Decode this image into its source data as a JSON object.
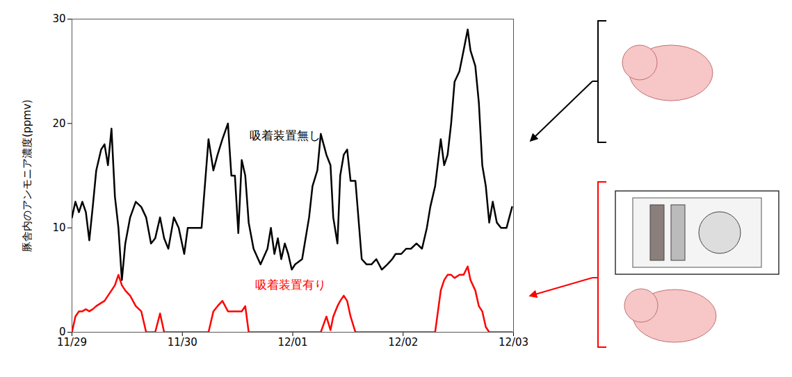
{
  "chart_data": {
    "type": "line",
    "y_label": "豚舎内のアンモニア濃度(ppmv)",
    "xlim": [
      0,
      4
    ],
    "xticks": [
      {
        "value": 0,
        "label": "11/29"
      },
      {
        "value": 1,
        "label": "11/30"
      },
      {
        "value": 2,
        "label": "12/01"
      },
      {
        "value": 3,
        "label": "12/02"
      },
      {
        "value": 4,
        "label": "12/03"
      }
    ],
    "ylim": [
      0,
      30
    ],
    "yticks": [
      0,
      10,
      20,
      30
    ],
    "grid": false,
    "x": [
      0,
      0.031,
      0.063,
      0.094,
      0.126,
      0.157,
      0.188,
      0.22,
      0.264,
      0.295,
      0.326,
      0.358,
      0.389,
      0.421,
      0.452,
      0.483,
      0.527,
      0.578,
      0.628,
      0.672,
      0.716,
      0.754,
      0.798,
      0.835,
      0.873,
      0.923,
      0.967,
      1.017,
      1.049,
      1.111,
      1.174,
      1.237,
      1.281,
      1.319,
      1.363,
      1.413,
      1.444,
      1.476,
      1.507,
      1.538,
      1.57,
      1.601,
      1.645,
      1.708,
      1.771,
      1.802,
      1.834,
      1.865,
      1.896,
      1.928,
      1.959,
      1.991,
      2.022,
      2.085,
      2.148,
      2.179,
      2.223,
      2.254,
      2.305,
      2.342,
      2.367,
      2.405,
      2.43,
      2.462,
      2.493,
      2.524,
      2.568,
      2.625,
      2.669,
      2.713,
      2.757,
      2.807,
      2.857,
      2.901,
      2.932,
      2.983,
      3.027,
      3.071,
      3.121,
      3.171,
      3.215,
      3.246,
      3.29,
      3.341,
      3.372,
      3.403,
      3.435,
      3.466,
      3.51,
      3.548,
      3.585,
      3.61,
      3.654,
      3.686,
      3.717,
      3.749,
      3.78,
      3.812,
      3.849,
      3.887,
      3.937,
      3.987
    ],
    "series": [
      {
        "name": "吸着装置無し",
        "color": "#000000",
        "label": {
          "x": 1.93,
          "y": 18.8
        },
        "values": [
          11,
          12.5,
          11.5,
          12.5,
          11.5,
          8.8,
          12,
          15.5,
          17.5,
          18,
          16,
          19.5,
          13,
          10,
          5,
          8.5,
          11,
          12.5,
          12,
          11,
          8.5,
          9,
          11,
          9,
          8,
          11,
          10,
          7.5,
          10,
          10,
          10,
          18.5,
          15.5,
          17,
          18.5,
          20,
          15,
          15,
          9.5,
          16.5,
          15,
          10.5,
          8,
          6.5,
          8,
          10,
          7.5,
          9,
          7,
          8.5,
          7.5,
          6,
          6.5,
          7,
          11,
          14,
          15.5,
          19,
          17,
          16,
          11,
          8.5,
          15,
          17,
          17.5,
          14.5,
          14.5,
          7,
          6.5,
          6.5,
          7,
          6,
          6.5,
          7,
          7.5,
          7.5,
          8,
          8,
          8.5,
          8,
          10,
          12,
          14,
          18.5,
          16,
          17,
          20,
          24,
          25,
          27,
          29,
          27,
          25.5,
          22,
          16,
          14,
          10.5,
          12.5,
          10.5,
          10,
          10,
          12
        ]
      },
      {
        "name": "吸着装置有り",
        "color": "#ff0000",
        "label": {
          "x": 1.98,
          "y": 4.5
        },
        "values": [
          0,
          1.5,
          2,
          2,
          2.2,
          2,
          2.2,
          2.5,
          2.8,
          3,
          3.5,
          4,
          4.5,
          5.5,
          4.5,
          4,
          3.5,
          2.5,
          2,
          0,
          0,
          0,
          1.8,
          0,
          0,
          0,
          0,
          0,
          0,
          0,
          0,
          0,
          2,
          2.5,
          3,
          2,
          2,
          2,
          2,
          2,
          2.5,
          0,
          0,
          0,
          0,
          0,
          0,
          0,
          0,
          0,
          0,
          0,
          0,
          0,
          0,
          0,
          0,
          0,
          1.5,
          0.2,
          1.5,
          2.5,
          3,
          3.5,
          3,
          1.5,
          0,
          0,
          0,
          0,
          0,
          0,
          0,
          0,
          0,
          0,
          0,
          0,
          0,
          0,
          0,
          0,
          0,
          4,
          5,
          5.5,
          5.5,
          5.2,
          5.5,
          5.5,
          6.3,
          5,
          4,
          2.5,
          2,
          0.5,
          0,
          0,
          0,
          0,
          0,
          0
        ]
      }
    ]
  }
}
